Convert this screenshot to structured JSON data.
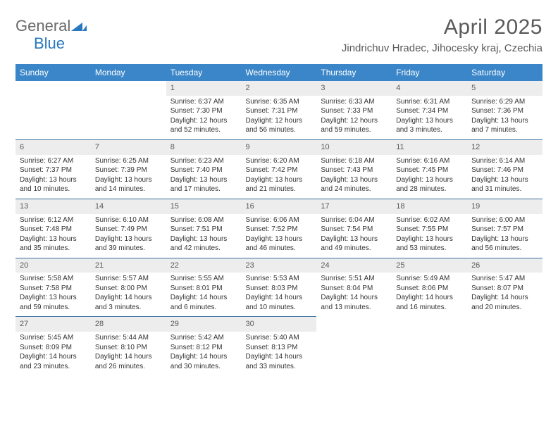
{
  "brand": {
    "word1": "General",
    "word2": "Blue",
    "text_color": "#6a6a6a",
    "accent_color": "#2a78bd"
  },
  "title": "April 2025",
  "location": "Jindrichuv Hradec, Jihocesky kraj, Czechia",
  "header_bg": "#3a86c8",
  "header_text_color": "#ffffff",
  "daynum_bg": "#ededed",
  "row_border_color": "#3a6fa0",
  "weekdays": [
    "Sunday",
    "Monday",
    "Tuesday",
    "Wednesday",
    "Thursday",
    "Friday",
    "Saturday"
  ],
  "weeks": [
    [
      {
        "n": "",
        "sunrise": "",
        "sunset": "",
        "daylight": ""
      },
      {
        "n": "",
        "sunrise": "",
        "sunset": "",
        "daylight": ""
      },
      {
        "n": "1",
        "sunrise": "6:37 AM",
        "sunset": "7:30 PM",
        "daylight": "12 hours and 52 minutes."
      },
      {
        "n": "2",
        "sunrise": "6:35 AM",
        "sunset": "7:31 PM",
        "daylight": "12 hours and 56 minutes."
      },
      {
        "n": "3",
        "sunrise": "6:33 AM",
        "sunset": "7:33 PM",
        "daylight": "12 hours and 59 minutes."
      },
      {
        "n": "4",
        "sunrise": "6:31 AM",
        "sunset": "7:34 PM",
        "daylight": "13 hours and 3 minutes."
      },
      {
        "n": "5",
        "sunrise": "6:29 AM",
        "sunset": "7:36 PM",
        "daylight": "13 hours and 7 minutes."
      }
    ],
    [
      {
        "n": "6",
        "sunrise": "6:27 AM",
        "sunset": "7:37 PM",
        "daylight": "13 hours and 10 minutes."
      },
      {
        "n": "7",
        "sunrise": "6:25 AM",
        "sunset": "7:39 PM",
        "daylight": "13 hours and 14 minutes."
      },
      {
        "n": "8",
        "sunrise": "6:23 AM",
        "sunset": "7:40 PM",
        "daylight": "13 hours and 17 minutes."
      },
      {
        "n": "9",
        "sunrise": "6:20 AM",
        "sunset": "7:42 PM",
        "daylight": "13 hours and 21 minutes."
      },
      {
        "n": "10",
        "sunrise": "6:18 AM",
        "sunset": "7:43 PM",
        "daylight": "13 hours and 24 minutes."
      },
      {
        "n": "11",
        "sunrise": "6:16 AM",
        "sunset": "7:45 PM",
        "daylight": "13 hours and 28 minutes."
      },
      {
        "n": "12",
        "sunrise": "6:14 AM",
        "sunset": "7:46 PM",
        "daylight": "13 hours and 31 minutes."
      }
    ],
    [
      {
        "n": "13",
        "sunrise": "6:12 AM",
        "sunset": "7:48 PM",
        "daylight": "13 hours and 35 minutes."
      },
      {
        "n": "14",
        "sunrise": "6:10 AM",
        "sunset": "7:49 PM",
        "daylight": "13 hours and 39 minutes."
      },
      {
        "n": "15",
        "sunrise": "6:08 AM",
        "sunset": "7:51 PM",
        "daylight": "13 hours and 42 minutes."
      },
      {
        "n": "16",
        "sunrise": "6:06 AM",
        "sunset": "7:52 PM",
        "daylight": "13 hours and 46 minutes."
      },
      {
        "n": "17",
        "sunrise": "6:04 AM",
        "sunset": "7:54 PM",
        "daylight": "13 hours and 49 minutes."
      },
      {
        "n": "18",
        "sunrise": "6:02 AM",
        "sunset": "7:55 PM",
        "daylight": "13 hours and 53 minutes."
      },
      {
        "n": "19",
        "sunrise": "6:00 AM",
        "sunset": "7:57 PM",
        "daylight": "13 hours and 56 minutes."
      }
    ],
    [
      {
        "n": "20",
        "sunrise": "5:58 AM",
        "sunset": "7:58 PM",
        "daylight": "13 hours and 59 minutes."
      },
      {
        "n": "21",
        "sunrise": "5:57 AM",
        "sunset": "8:00 PM",
        "daylight": "14 hours and 3 minutes."
      },
      {
        "n": "22",
        "sunrise": "5:55 AM",
        "sunset": "8:01 PM",
        "daylight": "14 hours and 6 minutes."
      },
      {
        "n": "23",
        "sunrise": "5:53 AM",
        "sunset": "8:03 PM",
        "daylight": "14 hours and 10 minutes."
      },
      {
        "n": "24",
        "sunrise": "5:51 AM",
        "sunset": "8:04 PM",
        "daylight": "14 hours and 13 minutes."
      },
      {
        "n": "25",
        "sunrise": "5:49 AM",
        "sunset": "8:06 PM",
        "daylight": "14 hours and 16 minutes."
      },
      {
        "n": "26",
        "sunrise": "5:47 AM",
        "sunset": "8:07 PM",
        "daylight": "14 hours and 20 minutes."
      }
    ],
    [
      {
        "n": "27",
        "sunrise": "5:45 AM",
        "sunset": "8:09 PM",
        "daylight": "14 hours and 23 minutes."
      },
      {
        "n": "28",
        "sunrise": "5:44 AM",
        "sunset": "8:10 PM",
        "daylight": "14 hours and 26 minutes."
      },
      {
        "n": "29",
        "sunrise": "5:42 AM",
        "sunset": "8:12 PM",
        "daylight": "14 hours and 30 minutes."
      },
      {
        "n": "30",
        "sunrise": "5:40 AM",
        "sunset": "8:13 PM",
        "daylight": "14 hours and 33 minutes."
      },
      {
        "n": "",
        "sunrise": "",
        "sunset": "",
        "daylight": ""
      },
      {
        "n": "",
        "sunrise": "",
        "sunset": "",
        "daylight": ""
      },
      {
        "n": "",
        "sunrise": "",
        "sunset": "",
        "daylight": ""
      }
    ]
  ],
  "labels": {
    "sunrise": "Sunrise:",
    "sunset": "Sunset:",
    "daylight": "Daylight:"
  }
}
